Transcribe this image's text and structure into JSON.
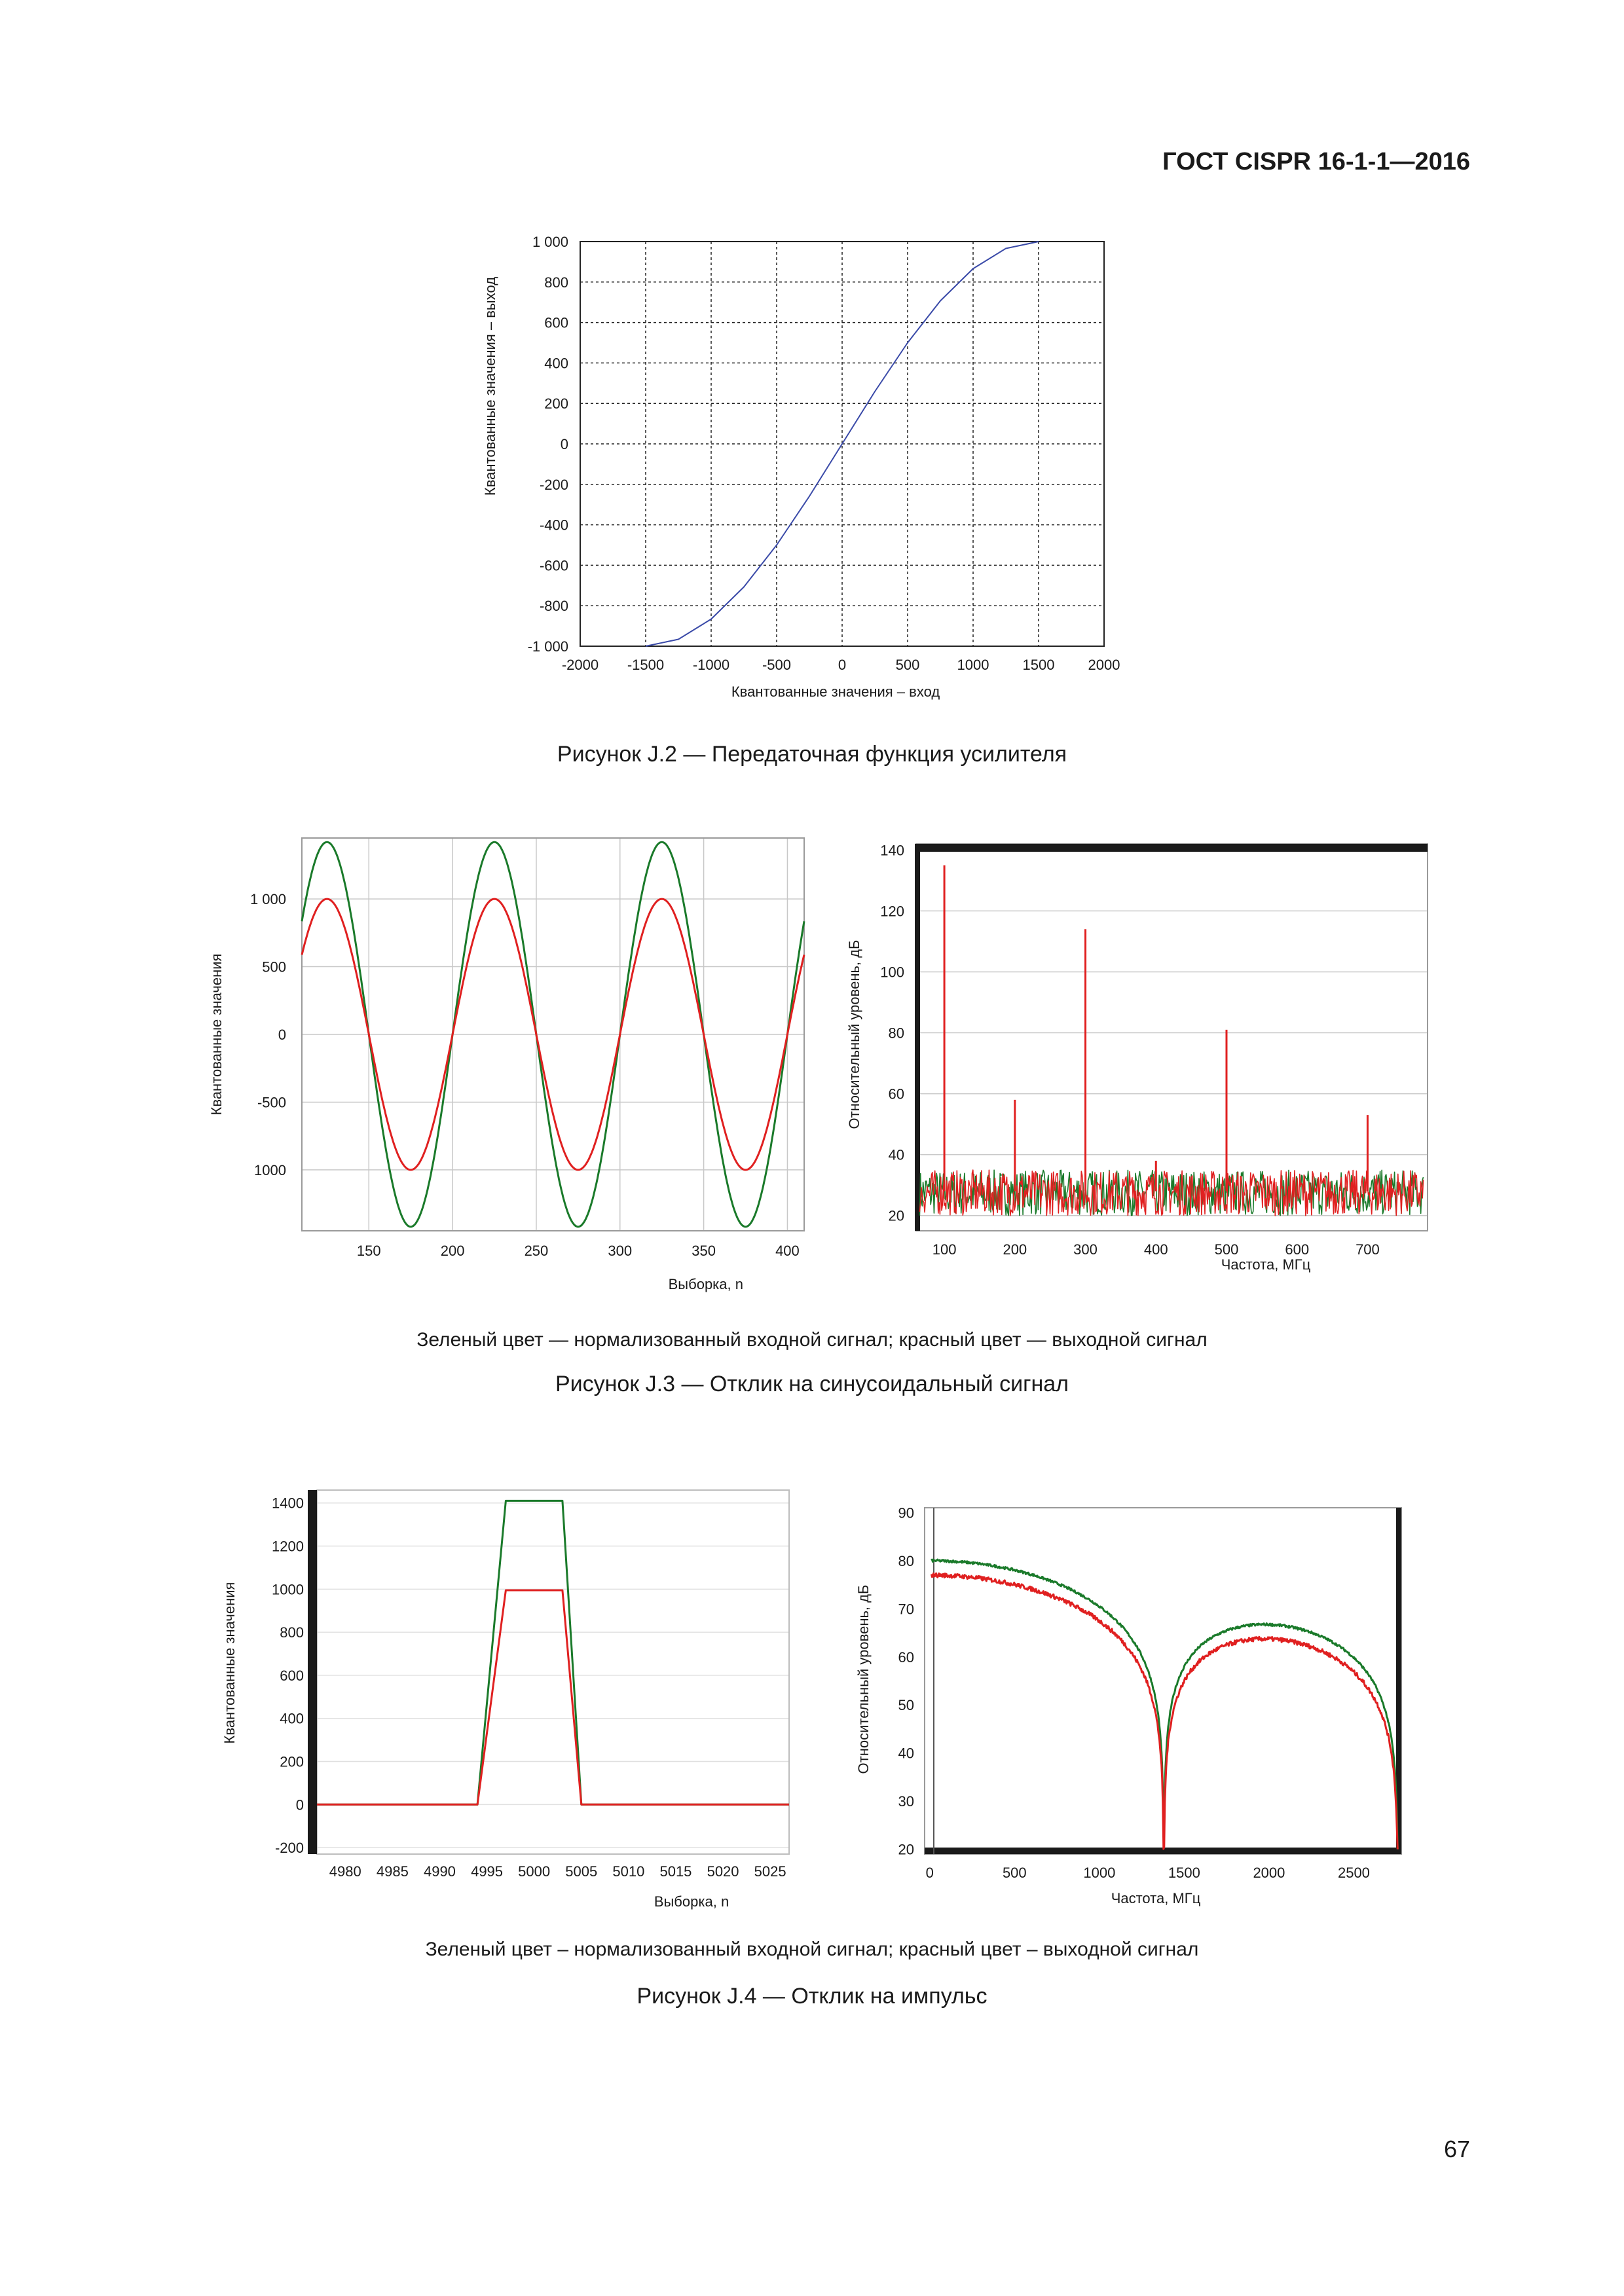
{
  "header": "ГОСТ CISPR 16-1-1—2016",
  "page_number": "67",
  "figures": [
    {
      "caption": "Рисунок J.2 —  Передаточная функция усилителя"
    },
    {
      "note": "Зеленый цвет — нормализованный входной сигнал; красный цвет — выходной сигнал",
      "caption": "Рисунок J.3 — Отклик на синусоидальный сигнал"
    },
    {
      "note": "Зеленый цвет – нормализованный входной сигнал; красный цвет – выходной сигнал",
      "caption": "Рисунок J.4 — Отклик на импульс"
    }
  ],
  "colors": {
    "input": "#1a7a2a",
    "output": "#e02020",
    "transfer": "#3a4aa8",
    "grid": "#222222",
    "light_grid": "#c8c8c8"
  },
  "chart_data": [
    {
      "type": "line",
      "title": "",
      "xlabel": "Квантованные значения – вход",
      "ylabel": "Квантованные значения – выход",
      "xlim": [
        -2000,
        2000
      ],
      "ylim": [
        -1000,
        1000
      ],
      "x_ticks": [
        "-2000",
        "-1500",
        "-1000",
        "-500",
        "0",
        "500",
        "1000",
        "1500",
        "2000"
      ],
      "y_ticks": [
        "1 000",
        "800",
        "600",
        "400",
        "200",
        "0",
        "-200",
        "-400",
        "-600",
        "-800",
        "-1 000"
      ],
      "grid": "dotted",
      "series": [
        {
          "x": [
            -1500,
            -1250,
            -1000,
            -750,
            -500,
            -250,
            0,
            250,
            500,
            750,
            1000,
            1250,
            1500
          ],
          "y": [
            -1000,
            -966,
            -866,
            -707,
            -500,
            -259,
            0,
            259,
            500,
            707,
            866,
            966,
            1000
          ]
        }
      ]
    },
    {
      "type": "line",
      "xlabel": "Выборка, n",
      "ylabel": "Квантованные значения",
      "xlim": [
        110,
        410
      ],
      "ylim": [
        -1450,
        1450
      ],
      "x_ticks": [
        "150",
        "200",
        "250",
        "300",
        "350",
        "400"
      ],
      "y_ticks": [
        "1 000",
        "500",
        "0",
        "-500",
        "1000"
      ],
      "period": 100,
      "phase_peak_x": 125,
      "series": [
        {
          "name": "Зеленый цвет",
          "amplitude": 1420
        },
        {
          "name": "красный цвет",
          "amplitude": 1000
        }
      ]
    },
    {
      "type": "line",
      "xlabel": "Частота, МГц",
      "ylabel": "Относительный уровень, дБ",
      "xlim": [
        60,
        785
      ],
      "ylim": [
        15,
        142
      ],
      "x_ticks": [
        "100",
        "200",
        "300",
        "400",
        "500",
        "600",
        "700"
      ],
      "y_ticks": [
        "140",
        "120",
        "100",
        "80",
        "60",
        "40",
        "20"
      ],
      "noise_floor": [
        20,
        35
      ],
      "peaks": [
        {
          "x": 100,
          "y": 135
        },
        {
          "x": 200,
          "y": 58
        },
        {
          "x": 300,
          "y": 114
        },
        {
          "x": 400,
          "y": 38
        },
        {
          "x": 500,
          "y": 81
        },
        {
          "x": 700,
          "y": 53
        }
      ]
    },
    {
      "type": "line",
      "xlabel": "Выборка, n",
      "ylabel": "Квантованные значения",
      "xlim": [
        4977,
        5027
      ],
      "ylim": [
        -230,
        1460
      ],
      "x_ticks": [
        "4980",
        "4985",
        "4990",
        "4995",
        "5000",
        "5005",
        "5010",
        "5015",
        "5020",
        "5025"
      ],
      "y_ticks": [
        "1400",
        "1200",
        "1000",
        "800",
        "600",
        "400",
        "200",
        "0",
        "-200"
      ],
      "series": [
        {
          "name": "Зеленый цвет",
          "x": [
            4977,
            4994,
            4997,
            5003,
            5005,
            5027
          ],
          "y": [
            0,
            0,
            1410,
            1410,
            0,
            0
          ]
        },
        {
          "name": "красный цвет",
          "x": [
            4977,
            4994,
            4997,
            5003,
            5005,
            5027
          ],
          "y": [
            0,
            0,
            995,
            995,
            0,
            0
          ]
        }
      ]
    },
    {
      "type": "line",
      "xlabel": "Частота, МГц",
      "ylabel": "Относительный уровень, дБ",
      "xlim": [
        -30,
        2780
      ],
      "ylim": [
        19,
        91
      ],
      "x_ticks": [
        "0",
        "500",
        "1000",
        "1500",
        "2000",
        "2500"
      ],
      "y_ticks": [
        "90",
        "80",
        "70",
        "60",
        "50",
        "40",
        "30",
        "20"
      ],
      "null_freq": 1380,
      "end_freq": 2760,
      "series": [
        {
          "name": "Зеленый цвет",
          "level_db": 80
        },
        {
          "name": "красный цвет",
          "level_db": 77
        }
      ]
    }
  ]
}
